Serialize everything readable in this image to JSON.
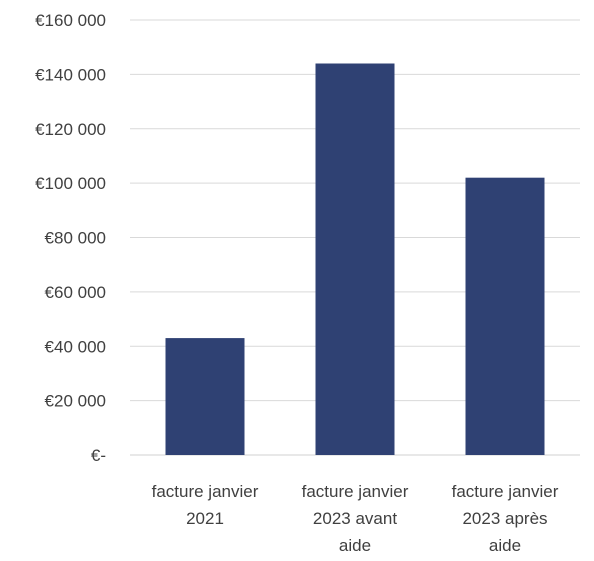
{
  "chart_data": {
    "type": "bar",
    "title": "",
    "xlabel": "",
    "ylabel": "",
    "categories": [
      "facture janvier 2021",
      "facture janvier 2023 avant aide",
      "facture janvier 2023 après aide"
    ],
    "category_label_lines": [
      [
        "facture janvier",
        "2021"
      ],
      [
        "facture janvier",
        "2023 avant",
        "aide"
      ],
      [
        "facture janvier",
        "2023 après",
        "aide"
      ]
    ],
    "values": [
      43000,
      144000,
      102000
    ],
    "ylim": [
      0,
      160000
    ],
    "yticks": [
      0,
      20000,
      40000,
      60000,
      80000,
      100000,
      120000,
      140000,
      160000
    ],
    "ytick_labels": [
      "€-",
      "€20 000",
      "€40 000",
      "€60 000",
      "€80 000",
      "€100 000",
      "€120 000",
      "€140 000",
      "€160 000"
    ],
    "grid": true,
    "legend": "none",
    "colors": {
      "bar": "#2f4173",
      "grid": "#d9d9d9",
      "text": "#404040"
    }
  }
}
